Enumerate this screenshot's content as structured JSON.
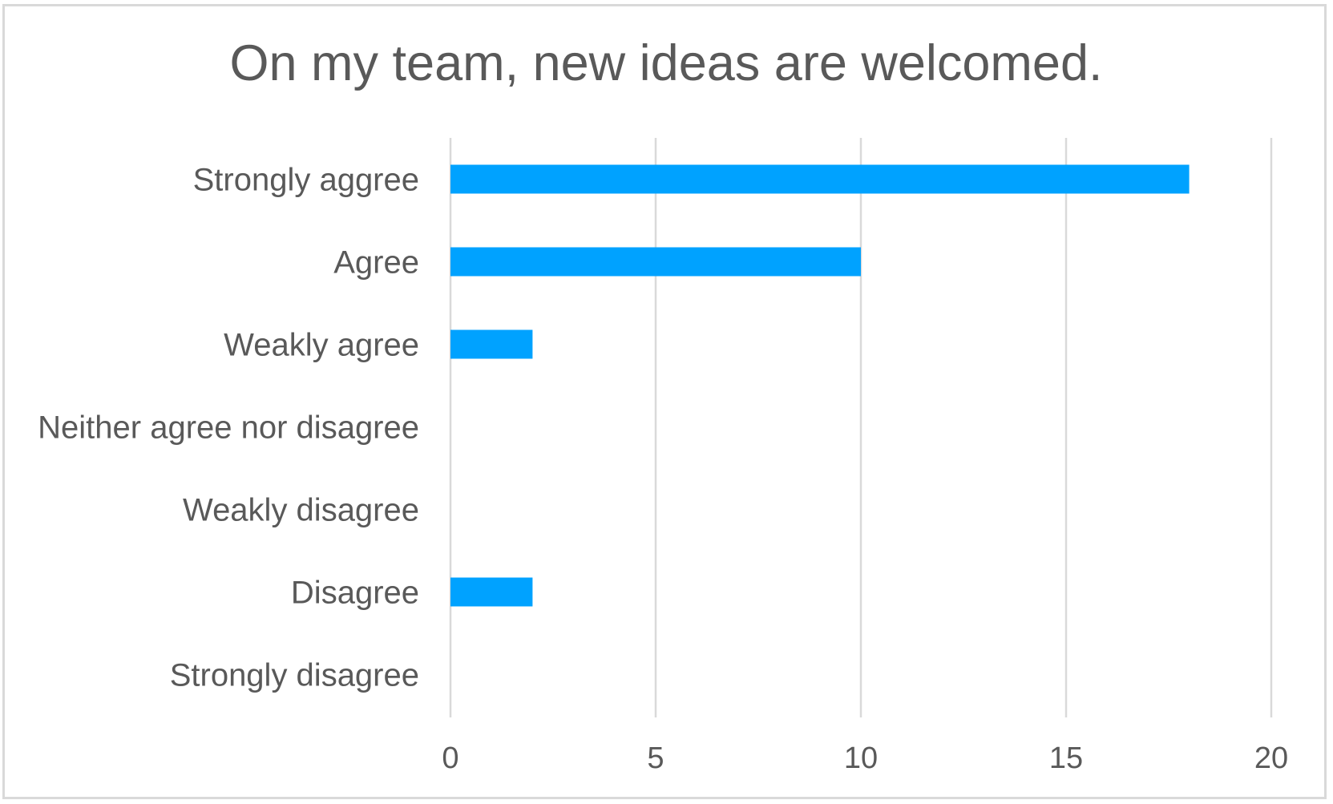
{
  "chart_data": {
    "type": "bar",
    "orientation": "horizontal",
    "title": "On my team, new ideas are welcomed.",
    "categories": [
      "Strongly aggree",
      "Agree",
      "Weakly agree",
      "Neither agree nor disagree",
      "Weakly disagree",
      "Disagree",
      "Strongly disagree"
    ],
    "values": [
      18,
      10,
      2,
      0,
      0,
      2,
      0
    ],
    "xlim": [
      0,
      20
    ],
    "xticks": [
      0,
      5,
      10,
      15,
      20
    ],
    "grid": true,
    "legend": "none",
    "bar_color": "#00a2ff"
  }
}
